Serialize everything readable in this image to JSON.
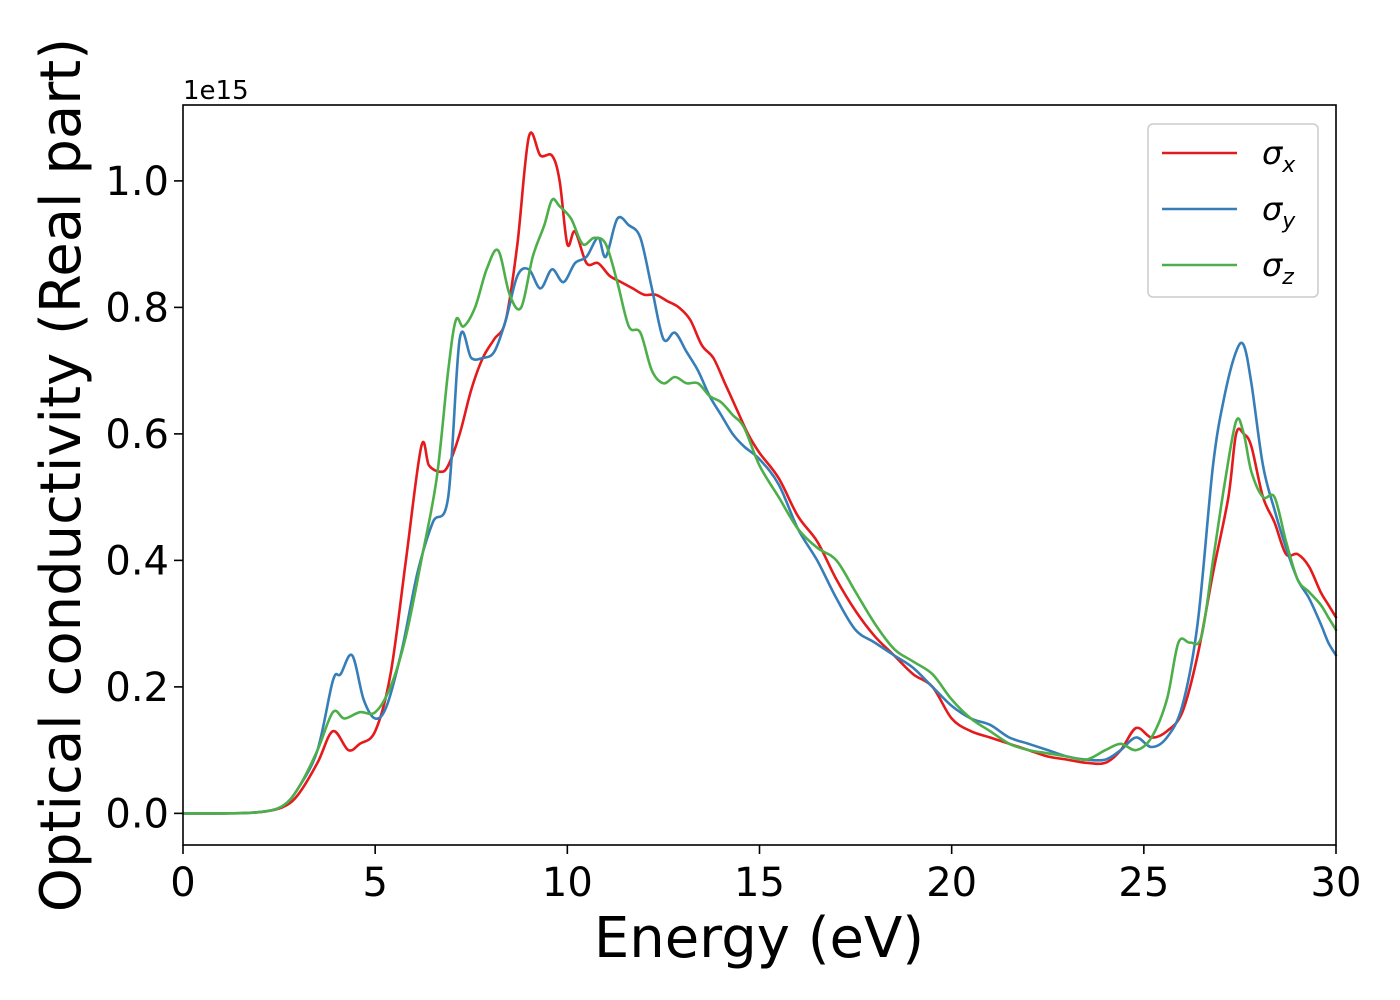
{
  "chart_data": {
    "type": "line",
    "title": "",
    "xlabel": "Energy (eV)",
    "ylabel": "Optical conductivity (Real part)",
    "y_offset_label": "1e15",
    "xlim": [
      0,
      30
    ],
    "ylim": [
      -0.05,
      1.12
    ],
    "xticks": [
      0,
      5,
      10,
      15,
      20,
      25,
      30
    ],
    "yticks": [
      0.0,
      0.2,
      0.4,
      0.6,
      0.8,
      1.0
    ],
    "xtick_labels": [
      "0",
      "5",
      "10",
      "15",
      "20",
      "25",
      "30"
    ],
    "ytick_labels": [
      "0.0",
      "0.2",
      "0.4",
      "0.6",
      "0.8",
      "1.0"
    ],
    "grid": false,
    "legend_position": "top-right",
    "series": [
      {
        "name": "σ",
        "subscript": "x",
        "color": "#e41a1c",
        "points": [
          [
            0,
            0
          ],
          [
            1,
            0
          ],
          [
            2,
            0.002
          ],
          [
            2.6,
            0.01
          ],
          [
            3,
            0.03
          ],
          [
            3.5,
            0.08
          ],
          [
            3.9,
            0.13
          ],
          [
            4.3,
            0.1
          ],
          [
            4.6,
            0.11
          ],
          [
            5,
            0.13
          ],
          [
            5.4,
            0.22
          ],
          [
            5.8,
            0.4
          ],
          [
            6.2,
            0.58
          ],
          [
            6.4,
            0.55
          ],
          [
            6.7,
            0.54
          ],
          [
            6.9,
            0.55
          ],
          [
            7.2,
            0.6
          ],
          [
            7.5,
            0.67
          ],
          [
            7.8,
            0.72
          ],
          [
            8.1,
            0.75
          ],
          [
            8.4,
            0.78
          ],
          [
            8.7,
            0.9
          ],
          [
            9.0,
            1.07
          ],
          [
            9.3,
            1.04
          ],
          [
            9.6,
            1.04
          ],
          [
            9.8,
            1.0
          ],
          [
            10.0,
            0.9
          ],
          [
            10.2,
            0.92
          ],
          [
            10.5,
            0.87
          ],
          [
            10.8,
            0.87
          ],
          [
            11.1,
            0.85
          ],
          [
            11.4,
            0.84
          ],
          [
            11.7,
            0.83
          ],
          [
            12.0,
            0.82
          ],
          [
            12.3,
            0.82
          ],
          [
            12.6,
            0.81
          ],
          [
            12.9,
            0.8
          ],
          [
            13.2,
            0.78
          ],
          [
            13.5,
            0.74
          ],
          [
            13.8,
            0.72
          ],
          [
            14.1,
            0.68
          ],
          [
            14.4,
            0.64
          ],
          [
            14.7,
            0.6
          ],
          [
            15.0,
            0.57
          ],
          [
            15.5,
            0.53
          ],
          [
            16.0,
            0.47
          ],
          [
            16.5,
            0.43
          ],
          [
            17.0,
            0.37
          ],
          [
            17.5,
            0.32
          ],
          [
            18.0,
            0.28
          ],
          [
            18.5,
            0.25
          ],
          [
            19.0,
            0.22
          ],
          [
            19.5,
            0.2
          ],
          [
            20.0,
            0.15
          ],
          [
            20.5,
            0.13
          ],
          [
            21.0,
            0.12
          ],
          [
            21.5,
            0.11
          ],
          [
            22.0,
            0.1
          ],
          [
            22.5,
            0.09
          ],
          [
            23.0,
            0.085
          ],
          [
            23.5,
            0.08
          ],
          [
            24.0,
            0.08
          ],
          [
            24.4,
            0.1
          ],
          [
            24.8,
            0.135
          ],
          [
            25.2,
            0.12
          ],
          [
            25.6,
            0.13
          ],
          [
            26.0,
            0.16
          ],
          [
            26.4,
            0.25
          ],
          [
            26.8,
            0.38
          ],
          [
            27.2,
            0.5
          ],
          [
            27.4,
            0.6
          ],
          [
            27.6,
            0.6
          ],
          [
            27.8,
            0.58
          ],
          [
            28.1,
            0.5
          ],
          [
            28.4,
            0.46
          ],
          [
            28.7,
            0.41
          ],
          [
            29.0,
            0.41
          ],
          [
            29.3,
            0.39
          ],
          [
            29.6,
            0.35
          ],
          [
            29.8,
            0.33
          ],
          [
            30.0,
            0.31
          ]
        ]
      },
      {
        "name": "σ",
        "subscript": "y",
        "color": "#377eb8",
        "points": [
          [
            0,
            0
          ],
          [
            1,
            0
          ],
          [
            2,
            0.002
          ],
          [
            2.6,
            0.012
          ],
          [
            3,
            0.04
          ],
          [
            3.5,
            0.1
          ],
          [
            3.9,
            0.21
          ],
          [
            4.1,
            0.22
          ],
          [
            4.4,
            0.25
          ],
          [
            4.7,
            0.18
          ],
          [
            5.0,
            0.15
          ],
          [
            5.3,
            0.17
          ],
          [
            5.7,
            0.26
          ],
          [
            6.1,
            0.38
          ],
          [
            6.5,
            0.46
          ],
          [
            6.9,
            0.5
          ],
          [
            7.2,
            0.75
          ],
          [
            7.5,
            0.72
          ],
          [
            7.8,
            0.72
          ],
          [
            8.1,
            0.73
          ],
          [
            8.4,
            0.78
          ],
          [
            8.7,
            0.85
          ],
          [
            9.0,
            0.86
          ],
          [
            9.3,
            0.83
          ],
          [
            9.6,
            0.86
          ],
          [
            9.9,
            0.84
          ],
          [
            10.2,
            0.87
          ],
          [
            10.5,
            0.88
          ],
          [
            10.8,
            0.91
          ],
          [
            11.0,
            0.88
          ],
          [
            11.3,
            0.94
          ],
          [
            11.6,
            0.93
          ],
          [
            11.9,
            0.91
          ],
          [
            12.2,
            0.83
          ],
          [
            12.5,
            0.75
          ],
          [
            12.8,
            0.76
          ],
          [
            13.1,
            0.73
          ],
          [
            13.4,
            0.7
          ],
          [
            13.7,
            0.66
          ],
          [
            14.0,
            0.63
          ],
          [
            14.3,
            0.6
          ],
          [
            14.6,
            0.58
          ],
          [
            15.0,
            0.56
          ],
          [
            15.5,
            0.52
          ],
          [
            16.0,
            0.45
          ],
          [
            16.5,
            0.4
          ],
          [
            17.0,
            0.34
          ],
          [
            17.5,
            0.29
          ],
          [
            18.0,
            0.27
          ],
          [
            18.5,
            0.25
          ],
          [
            19.0,
            0.23
          ],
          [
            19.5,
            0.2
          ],
          [
            20.0,
            0.17
          ],
          [
            20.5,
            0.15
          ],
          [
            21.0,
            0.14
          ],
          [
            21.5,
            0.12
          ],
          [
            22.0,
            0.11
          ],
          [
            22.5,
            0.1
          ],
          [
            23.0,
            0.09
          ],
          [
            23.5,
            0.085
          ],
          [
            24.0,
            0.085
          ],
          [
            24.4,
            0.1
          ],
          [
            24.8,
            0.12
          ],
          [
            25.2,
            0.105
          ],
          [
            25.6,
            0.12
          ],
          [
            26.0,
            0.17
          ],
          [
            26.4,
            0.3
          ],
          [
            26.8,
            0.55
          ],
          [
            27.1,
            0.66
          ],
          [
            27.4,
            0.73
          ],
          [
            27.6,
            0.74
          ],
          [
            27.8,
            0.68
          ],
          [
            28.1,
            0.55
          ],
          [
            28.4,
            0.48
          ],
          [
            28.7,
            0.42
          ],
          [
            29.0,
            0.37
          ],
          [
            29.3,
            0.34
          ],
          [
            29.6,
            0.3
          ],
          [
            29.8,
            0.27
          ],
          [
            30.0,
            0.25
          ]
        ]
      },
      {
        "name": "σ",
        "subscript": "z",
        "color": "#4daf4a",
        "points": [
          [
            0,
            0
          ],
          [
            1,
            0
          ],
          [
            2,
            0.002
          ],
          [
            2.6,
            0.012
          ],
          [
            3,
            0.04
          ],
          [
            3.5,
            0.1
          ],
          [
            3.9,
            0.16
          ],
          [
            4.2,
            0.15
          ],
          [
            4.6,
            0.16
          ],
          [
            5.0,
            0.16
          ],
          [
            5.4,
            0.2
          ],
          [
            5.8,
            0.28
          ],
          [
            6.2,
            0.4
          ],
          [
            6.6,
            0.53
          ],
          [
            6.9,
            0.7
          ],
          [
            7.1,
            0.78
          ],
          [
            7.3,
            0.77
          ],
          [
            7.6,
            0.8
          ],
          [
            7.9,
            0.86
          ],
          [
            8.2,
            0.89
          ],
          [
            8.5,
            0.82
          ],
          [
            8.8,
            0.8
          ],
          [
            9.1,
            0.88
          ],
          [
            9.4,
            0.93
          ],
          [
            9.6,
            0.97
          ],
          [
            9.8,
            0.96
          ],
          [
            10.1,
            0.94
          ],
          [
            10.4,
            0.9
          ],
          [
            10.7,
            0.91
          ],
          [
            11.0,
            0.9
          ],
          [
            11.3,
            0.84
          ],
          [
            11.6,
            0.77
          ],
          [
            11.9,
            0.76
          ],
          [
            12.2,
            0.7
          ],
          [
            12.5,
            0.68
          ],
          [
            12.8,
            0.69
          ],
          [
            13.1,
            0.68
          ],
          [
            13.4,
            0.68
          ],
          [
            13.7,
            0.66
          ],
          [
            14.0,
            0.65
          ],
          [
            14.3,
            0.63
          ],
          [
            14.6,
            0.61
          ],
          [
            15.0,
            0.55
          ],
          [
            15.5,
            0.5
          ],
          [
            16.0,
            0.45
          ],
          [
            16.5,
            0.42
          ],
          [
            17.0,
            0.4
          ],
          [
            17.5,
            0.35
          ],
          [
            18.0,
            0.3
          ],
          [
            18.5,
            0.26
          ],
          [
            19.0,
            0.24
          ],
          [
            19.5,
            0.22
          ],
          [
            20.0,
            0.18
          ],
          [
            20.5,
            0.15
          ],
          [
            21.0,
            0.13
          ],
          [
            21.5,
            0.11
          ],
          [
            22.0,
            0.1
          ],
          [
            22.5,
            0.095
          ],
          [
            23.0,
            0.09
          ],
          [
            23.5,
            0.085
          ],
          [
            24.0,
            0.1
          ],
          [
            24.4,
            0.11
          ],
          [
            24.8,
            0.1
          ],
          [
            25.2,
            0.12
          ],
          [
            25.6,
            0.18
          ],
          [
            25.9,
            0.27
          ],
          [
            26.2,
            0.27
          ],
          [
            26.5,
            0.28
          ],
          [
            26.8,
            0.4
          ],
          [
            27.1,
            0.52
          ],
          [
            27.4,
            0.62
          ],
          [
            27.6,
            0.6
          ],
          [
            27.8,
            0.54
          ],
          [
            28.1,
            0.5
          ],
          [
            28.4,
            0.5
          ],
          [
            28.7,
            0.43
          ],
          [
            29.0,
            0.37
          ],
          [
            29.3,
            0.35
          ],
          [
            29.6,
            0.33
          ],
          [
            29.8,
            0.31
          ],
          [
            30.0,
            0.29
          ]
        ]
      }
    ]
  }
}
